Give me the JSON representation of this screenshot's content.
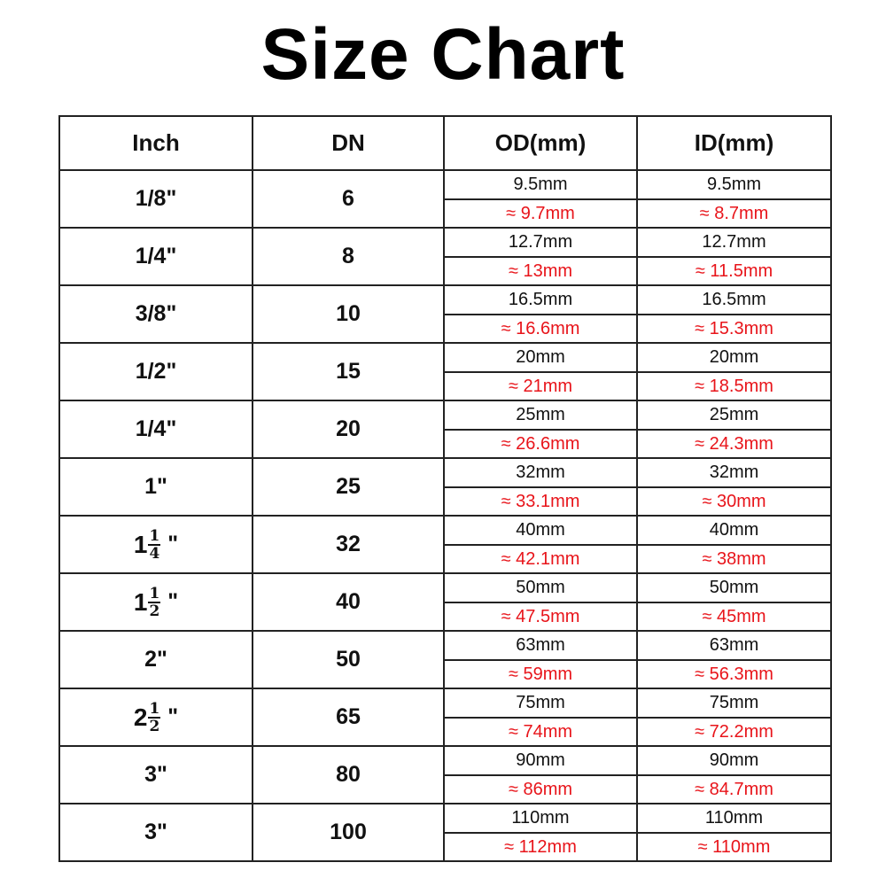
{
  "title": "Size Chart",
  "headers": [
    "Inch",
    "DN",
    "OD(mm)",
    "ID(mm)"
  ],
  "colors": {
    "nominal": "#111111",
    "approx": "#e8141a"
  },
  "rows": [
    {
      "inch": {
        "text": "1/8\""
      },
      "dn": "6",
      "od": "9.5mm",
      "od_approx": "≈ 9.7mm",
      "id": "9.5mm",
      "id_approx": "≈ 8.7mm"
    },
    {
      "inch": {
        "text": "1/4\""
      },
      "dn": "8",
      "od": "12.7mm",
      "od_approx": "≈ 13mm",
      "id": "12.7mm",
      "id_approx": "≈ 11.5mm"
    },
    {
      "inch": {
        "text": "3/8\""
      },
      "dn": "10",
      "od": "16.5mm",
      "od_approx": "≈ 16.6mm",
      "id": "16.5mm",
      "id_approx": "≈ 15.3mm"
    },
    {
      "inch": {
        "text": "1/2\""
      },
      "dn": "15",
      "od": "20mm",
      "od_approx": "≈ 21mm",
      "id": "20mm",
      "id_approx": "≈ 18.5mm"
    },
    {
      "inch": {
        "text": "1/4\""
      },
      "dn": "20",
      "od": "25mm",
      "od_approx": "≈ 26.6mm",
      "id": "25mm",
      "id_approx": "≈ 24.3mm"
    },
    {
      "inch": {
        "text": "1\""
      },
      "dn": "25",
      "od": "32mm",
      "od_approx": "≈ 33.1mm",
      "id": "32mm",
      "id_approx": "≈ 30mm"
    },
    {
      "inch": {
        "whole": "1",
        "num": "1",
        "den": "4",
        "mark": "\""
      },
      "dn": "32",
      "od": "40mm",
      "od_approx": "≈ 42.1mm",
      "id": "40mm",
      "id_approx": "≈ 38mm"
    },
    {
      "inch": {
        "whole": "1",
        "num": "1",
        "den": "2",
        "mark": "\""
      },
      "dn": "40",
      "od": "50mm",
      "od_approx": "≈ 47.5mm",
      "id": "50mm",
      "id_approx": "≈ 45mm"
    },
    {
      "inch": {
        "text": "2\""
      },
      "dn": "50",
      "od": "63mm",
      "od_approx": "≈ 59mm",
      "id": "63mm",
      "id_approx": "≈ 56.3mm"
    },
    {
      "inch": {
        "whole": "2",
        "num": "1",
        "den": "2",
        "mark": "\""
      },
      "dn": "65",
      "od": "75mm",
      "od_approx": "≈ 74mm",
      "id": "75mm",
      "id_approx": "≈ 72.2mm"
    },
    {
      "inch": {
        "text": "3\""
      },
      "dn": "80",
      "od": "90mm",
      "od_approx": "≈ 86mm",
      "id": "90mm",
      "id_approx": "≈ 84.7mm"
    },
    {
      "inch": {
        "text": "3\""
      },
      "dn": "100",
      "od": "110mm",
      "od_approx": "≈ 112mm",
      "id": "110mm",
      "id_approx": "≈ 110mm"
    }
  ]
}
